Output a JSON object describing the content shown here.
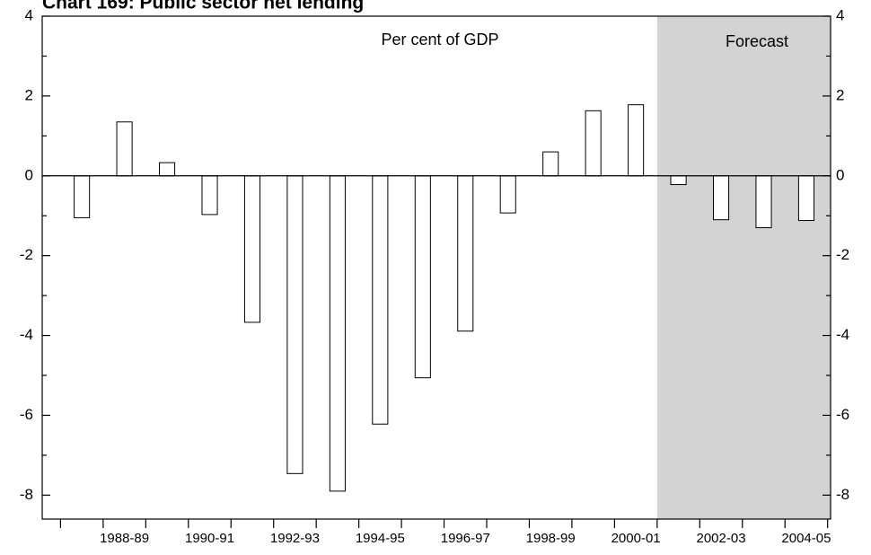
{
  "chart_data": {
    "type": "bar",
    "title": "Chart 169: Public sector net lending",
    "subtitle": "Per cent of GDP",
    "annotation": "Forecast",
    "categories": [
      null,
      "1988-89",
      null,
      "1990-91",
      null,
      "1992-93",
      null,
      "1994-95",
      null,
      "1996-97",
      null,
      "1998-99",
      null,
      "2000-01",
      null,
      "2002-03",
      null,
      "2004-05"
    ],
    "values": [
      -1.05,
      1.35,
      0.33,
      -0.97,
      -3.67,
      -7.46,
      -7.9,
      -6.22,
      -5.06,
      -3.89,
      -0.93,
      0.6,
      1.63,
      1.78,
      -0.22,
      -1.1,
      -1.3,
      -1.12
    ],
    "color": "#ffffff",
    "forecast_color": "#d3d3d3",
    "ylim": [
      -8.6,
      4
    ],
    "yticks": [
      -8,
      -6,
      -4,
      -2,
      0,
      2,
      4
    ],
    "grid": false
  }
}
